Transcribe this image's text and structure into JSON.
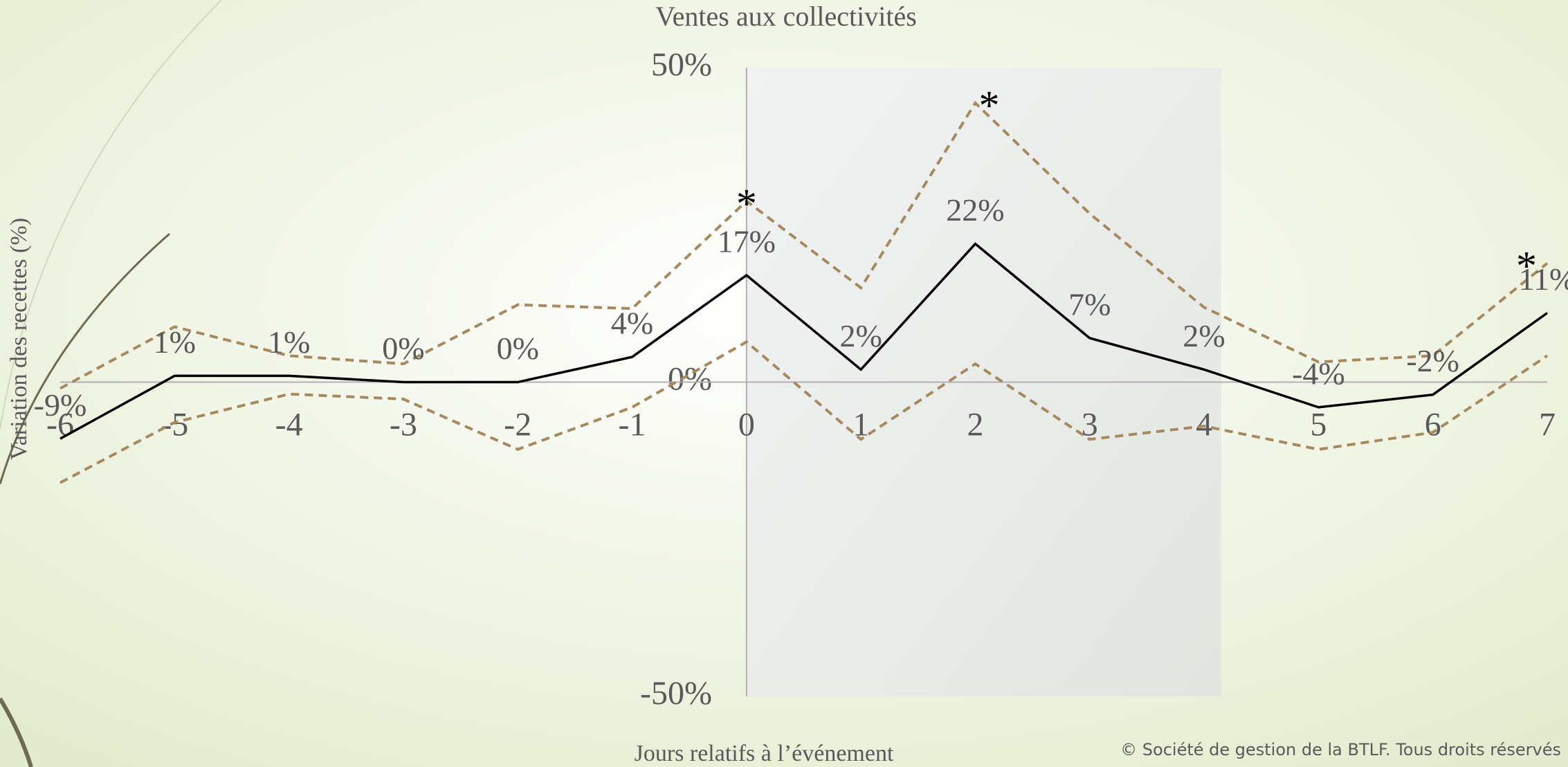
{
  "chart_data": {
    "type": "line",
    "title": "Ventes aux collectivités",
    "y_label": "Variation des recettes (%)",
    "x_label": "Jours relatifs à l’événement",
    "copyright": "© Société de gestion de la BTLF. Tous droits réservés",
    "x": [
      -6,
      -5,
      -4,
      -3,
      -2,
      -1,
      0,
      1,
      2,
      3,
      4,
      5,
      6,
      7
    ],
    "series": [
      {
        "color": "#a58a5f",
        "dashed": true,
        "values": [
          -1,
          8.8,
          4.2,
          2.9,
          12.3,
          11.7,
          28.8,
          15,
          44.4,
          26.8,
          11.9,
          3.2,
          4.2,
          18.9
        ]
      },
      {
        "color": "#000000",
        "dashed": false,
        "values": [
          -9,
          1,
          1,
          0,
          0,
          4,
          17,
          2,
          22,
          7,
          2,
          -4,
          -2,
          11
        ],
        "value_labels": [
          "-9%",
          "1%",
          "1%",
          "0%",
          "0%",
          "4%",
          "17%",
          "2%",
          "22%",
          "7%",
          "2%",
          "-4%",
          "-2%",
          "11%"
        ]
      },
      {
        "color": "#a58a5f",
        "dashed": true,
        "values": [
          -16,
          -6.4,
          -1.9,
          -2.7,
          -10.7,
          -4,
          6.4,
          -9.1,
          2.9,
          -9.1,
          -7,
          -10.7,
          -8,
          4.2
        ]
      }
    ],
    "annotations": [
      {
        "text": "*",
        "x": 0
      },
      {
        "text": "*",
        "x": 2
      },
      {
        "text": "*",
        "x": 7
      }
    ],
    "highlight_xlim": [
      0,
      4.15
    ],
    "xlim": [
      -6,
      7
    ],
    "xticks": [
      -6,
      -5,
      -4,
      -3,
      -2,
      -1,
      0,
      1,
      2,
      3,
      4,
      5,
      6,
      7
    ],
    "ylim": [
      -50,
      50
    ],
    "yticks": [
      {
        "value": -50,
        "label": "-50%"
      },
      {
        "value": 0,
        "label": "0%"
      },
      {
        "value": 50,
        "label": "50%"
      }
    ]
  }
}
